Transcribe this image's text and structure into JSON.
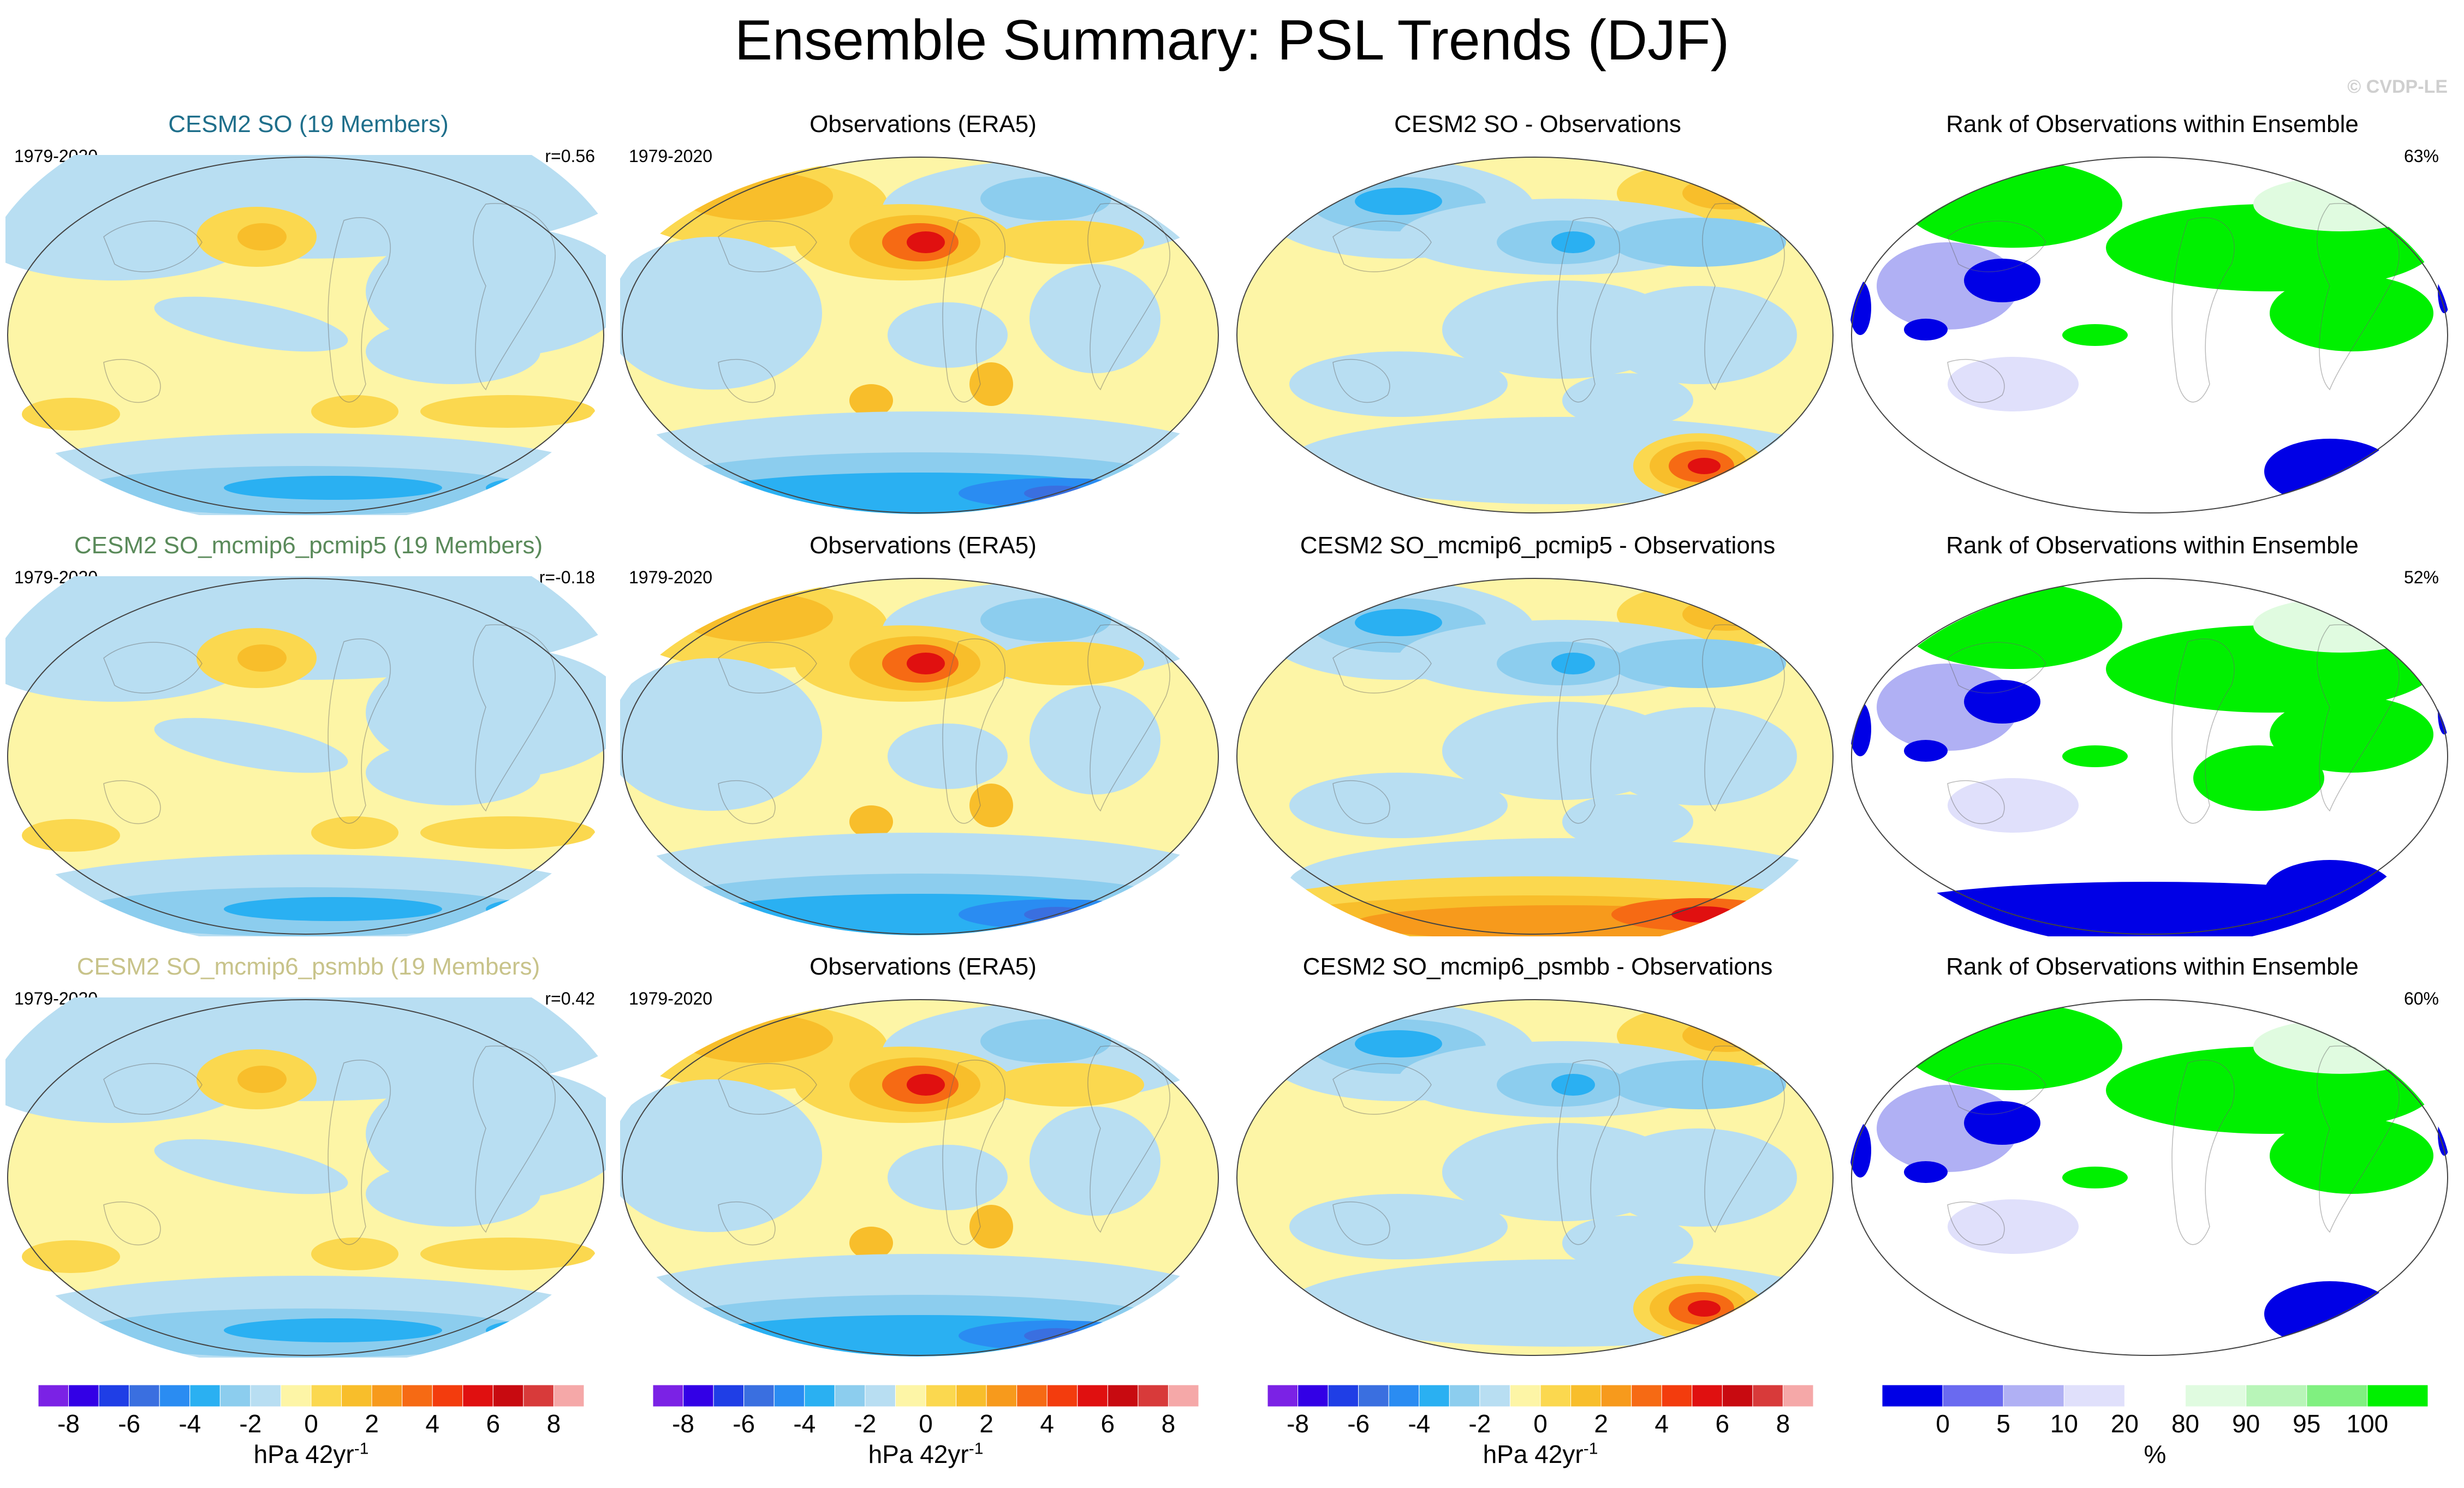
{
  "title": "Ensemble Summary: PSL Trends (DJF)",
  "watermark": "© CVDP-LE",
  "rows": [
    {
      "model_title": "CESM2 SO (19 Members)",
      "model_color": "#1f6f8b",
      "period": "1979-2020",
      "corr": "r=0.56",
      "obs_title": "Observations (ERA5)",
      "obs_period": "1979-2020",
      "diff_title": "CESM2 SO - Observations",
      "rank_title": "Rank of Observations within Ensemble",
      "rank_pct": "63%"
    },
    {
      "model_title": "CESM2 SO_mcmip6_pcmip5 (19 Members)",
      "model_color": "#5a8a5a",
      "period": "1979-2020",
      "corr": "r=-0.18",
      "obs_title": "Observations (ERA5)",
      "obs_period": "1979-2020",
      "diff_title": "CESM2 SO_mcmip6_pcmip5 - Observations",
      "rank_title": "Rank of Observations within Ensemble",
      "rank_pct": "52%"
    },
    {
      "model_title": "CESM2 SO_mcmip6_psmbb (19 Members)",
      "model_color": "#c8c38a",
      "period": "1979-2020",
      "corr": "r=0.42",
      "obs_title": "Observations (ERA5)",
      "obs_period": "1979-2020",
      "diff_title": "CESM2 SO_mcmip6_psmbb - Observations",
      "rank_title": "Rank of Observations within Ensemble",
      "rank_pct": "60%"
    }
  ],
  "colorbars": {
    "trend": {
      "colors": [
        "#7b22e5",
        "#3300e6",
        "#1f3ee6",
        "#3a6fe0",
        "#2a8cf2",
        "#2ab0f2",
        "#8ccdee",
        "#b8def2",
        "#fdf5a6",
        "#fbd84f",
        "#f8be2b",
        "#f79a1c",
        "#f66a14",
        "#f33c0d",
        "#e01010",
        "#c80a10",
        "#d83a3a",
        "#f5a8a8"
      ],
      "ticks": [
        "-8",
        "-6",
        "-4",
        "-2",
        "0",
        "2",
        "4",
        "6",
        "8"
      ],
      "label": "hPa 42yr",
      "label_sup": "-1"
    },
    "rank": {
      "colors": [
        "#0000e6",
        "#6a6af0",
        "#b0b0f4",
        "#e0e0fb",
        "#ffffff",
        "#e0fbe0",
        "#b8f5b8",
        "#80f080",
        "#00f000"
      ],
      "ticks": [
        "0",
        "5",
        "10",
        "20",
        "80",
        "90",
        "95",
        "100"
      ],
      "label": "%"
    }
  }
}
